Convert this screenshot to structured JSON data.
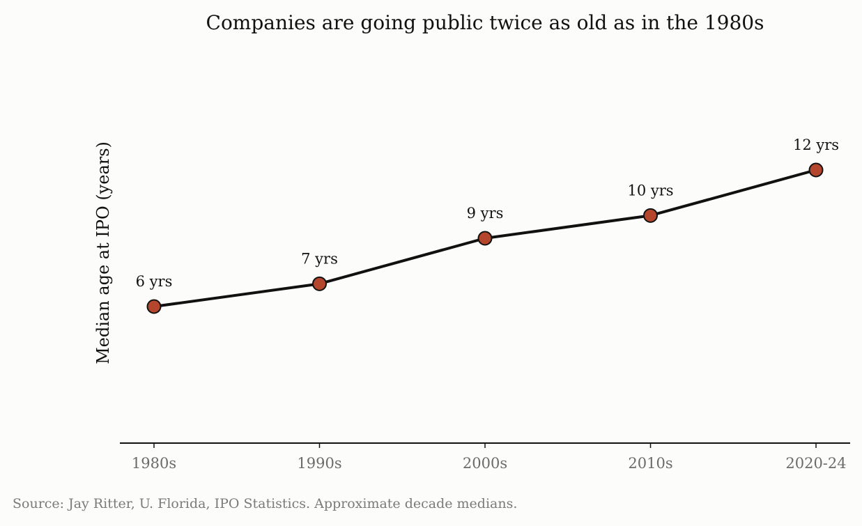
{
  "chart_data": {
    "type": "line",
    "title": "Companies are going public twice as old as in the 1980s",
    "xlabel": "",
    "ylabel": "Median age at IPO (years)",
    "categories": [
      "1980s",
      "1990s",
      "2000s",
      "2010s",
      "2020-24"
    ],
    "series": [
      {
        "values": [
          6,
          7,
          9,
          10,
          12
        ],
        "labels": [
          "6 yrs",
          "7 yrs",
          "9 yrs",
          "10 yrs",
          "12 yrs"
        ]
      }
    ],
    "ylim": [
      0,
      18
    ],
    "grid": false,
    "y_ticks_visible": false,
    "line_color": "#111111",
    "marker_color": "#b5462e",
    "marker_edge_color": "#111111",
    "source": "Source: Jay Ritter, U. Florida, IPO Statistics. Approximate decade medians."
  }
}
